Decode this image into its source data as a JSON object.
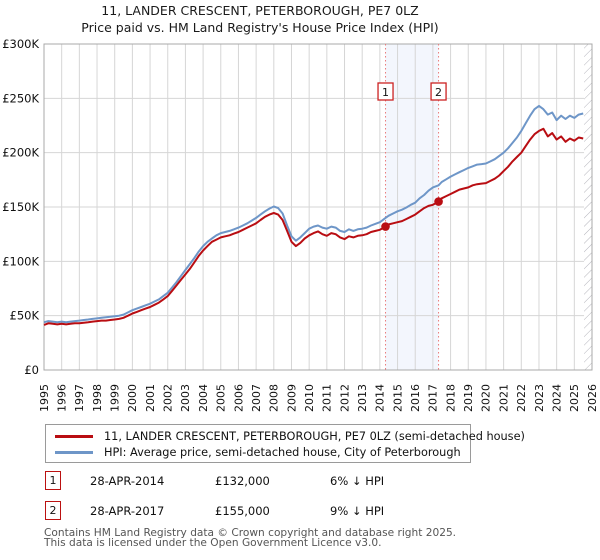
{
  "page": {
    "title": "11, LANDER CRESCENT, PETERBOROUGH, PE7 0LZ",
    "subtitle": "Price paid vs. HM Land Registry's House Price Index (HPI)"
  },
  "legend": {
    "items": [
      {
        "label": "11, LANDER CRESCENT, PETERBOROUGH, PE7 0LZ (semi-detached house)",
        "color": "#b90d12"
      },
      {
        "label": "HPI: Average price, semi-detached house, City of Peterborough",
        "color": "#6e96c8"
      }
    ]
  },
  "transactions": [
    {
      "index": "1",
      "date": "28-APR-2014",
      "price": "£132,000",
      "vs_hpi": "6% ↓ HPI"
    },
    {
      "index": "2",
      "date": "28-APR-2017",
      "price": "£155,000",
      "vs_hpi": "9% ↓ HPI"
    }
  ],
  "footer": {
    "line1": "Contains HM Land Registry data © Crown copyright and database right 2025.",
    "line2": "This data is licensed under the Open Government Licence v3.0."
  },
  "chart_data": {
    "type": "line",
    "title": "11, LANDER CRESCENT, PETERBOROUGH, PE7 0LZ — Price paid vs. HPI",
    "unit": "GBP thousands",
    "x_range": [
      1995,
      2026
    ],
    "y_range_thousands": [
      0,
      300
    ],
    "grid": true,
    "y_ticks": [
      {
        "value": 0,
        "label": "£0"
      },
      {
        "value": 50,
        "label": "£50K"
      },
      {
        "value": 100,
        "label": "£100K"
      },
      {
        "value": 150,
        "label": "£150K"
      },
      {
        "value": 200,
        "label": "£200K"
      },
      {
        "value": 250,
        "label": "£250K"
      },
      {
        "value": 300,
        "label": "£300K"
      }
    ],
    "x_tick_labels": [
      "1995",
      "1996",
      "1997",
      "1998",
      "1999",
      "2000",
      "2001",
      "2002",
      "2003",
      "2004",
      "2005",
      "2006",
      "2007",
      "2008",
      "2009",
      "2010",
      "2011",
      "2012",
      "2013",
      "2014",
      "2015",
      "2016",
      "2017",
      "2018",
      "2019",
      "2020",
      "2021",
      "2022",
      "2023",
      "2024",
      "2025",
      "2026"
    ],
    "event_band": {
      "from": 2014.32,
      "to": 2017.32,
      "color": "#f3f6fd"
    },
    "no_data_band": {
      "from": 2025.55,
      "to": 2026
    },
    "event_line_color": "#e97b7b",
    "markers": [
      {
        "label": "1",
        "x": 2014.32,
        "y": 132
      },
      {
        "label": "2",
        "x": 2017.32,
        "y": 155
      }
    ],
    "series": [
      {
        "name": "11, LANDER CRESCENT, PETERBOROUGH, PE7 0LZ (semi-detached house)",
        "color": "#b90d12",
        "points": [
          [
            1995,
            41.5
          ],
          [
            1995.25,
            43
          ],
          [
            1995.5,
            42.5
          ],
          [
            1995.75,
            42
          ],
          [
            1996,
            42.5
          ],
          [
            1996.25,
            42
          ],
          [
            1996.5,
            42.5
          ],
          [
            1996.75,
            43
          ],
          [
            1997,
            43
          ],
          [
            1997.25,
            43.5
          ],
          [
            1997.5,
            44
          ],
          [
            1997.75,
            44.5
          ],
          [
            1998,
            45
          ],
          [
            1998.25,
            45.5
          ],
          [
            1998.5,
            45.5
          ],
          [
            1998.75,
            46
          ],
          [
            1999,
            46.5
          ],
          [
            1999.25,
            47
          ],
          [
            1999.5,
            48
          ],
          [
            1999.75,
            50
          ],
          [
            2000,
            52
          ],
          [
            2000.25,
            53.5
          ],
          [
            2000.5,
            55
          ],
          [
            2000.75,
            56.5
          ],
          [
            2001,
            58
          ],
          [
            2001.25,
            60
          ],
          [
            2001.5,
            62
          ],
          [
            2001.75,
            65
          ],
          [
            2002,
            68
          ],
          [
            2002.25,
            73
          ],
          [
            2002.5,
            78
          ],
          [
            2002.75,
            83
          ],
          [
            2003,
            88
          ],
          [
            2003.25,
            93
          ],
          [
            2003.5,
            99
          ],
          [
            2003.75,
            105
          ],
          [
            2004,
            110
          ],
          [
            2004.25,
            114
          ],
          [
            2004.5,
            118
          ],
          [
            2004.75,
            120
          ],
          [
            2005,
            122
          ],
          [
            2005.25,
            123
          ],
          [
            2005.5,
            124
          ],
          [
            2005.75,
            125.5
          ],
          [
            2006,
            127
          ],
          [
            2006.25,
            129
          ],
          [
            2006.5,
            131
          ],
          [
            2006.75,
            133
          ],
          [
            2007,
            135
          ],
          [
            2007.25,
            138
          ],
          [
            2007.5,
            141
          ],
          [
            2007.75,
            143
          ],
          [
            2008,
            144.5
          ],
          [
            2008.25,
            143
          ],
          [
            2008.5,
            138
          ],
          [
            2008.75,
            128
          ],
          [
            2009,
            118
          ],
          [
            2009.25,
            114
          ],
          [
            2009.5,
            117
          ],
          [
            2009.75,
            121
          ],
          [
            2010,
            124
          ],
          [
            2010.25,
            126
          ],
          [
            2010.5,
            127.5
          ],
          [
            2010.75,
            125
          ],
          [
            2011,
            123.5
          ],
          [
            2011.25,
            126
          ],
          [
            2011.5,
            125
          ],
          [
            2011.75,
            122
          ],
          [
            2012,
            120.5
          ],
          [
            2012.25,
            123
          ],
          [
            2012.5,
            122
          ],
          [
            2012.75,
            123.5
          ],
          [
            2013,
            124
          ],
          [
            2013.25,
            125
          ],
          [
            2013.5,
            127
          ],
          [
            2013.75,
            128
          ],
          [
            2014,
            129
          ],
          [
            2014.32,
            132
          ],
          [
            2014.5,
            134
          ],
          [
            2014.75,
            135
          ],
          [
            2015,
            136
          ],
          [
            2015.25,
            137
          ],
          [
            2015.5,
            139
          ],
          [
            2015.75,
            141
          ],
          [
            2016,
            143
          ],
          [
            2016.25,
            146
          ],
          [
            2016.5,
            149
          ],
          [
            2016.75,
            151
          ],
          [
            2017,
            152
          ],
          [
            2017.32,
            155
          ],
          [
            2017.5,
            158
          ],
          [
            2017.75,
            160
          ],
          [
            2018,
            162
          ],
          [
            2018.25,
            164
          ],
          [
            2018.5,
            166
          ],
          [
            2018.75,
            167
          ],
          [
            2019,
            168
          ],
          [
            2019.25,
            170
          ],
          [
            2019.5,
            171
          ],
          [
            2019.75,
            171.5
          ],
          [
            2020,
            172
          ],
          [
            2020.25,
            174
          ],
          [
            2020.5,
            176
          ],
          [
            2020.75,
            179
          ],
          [
            2021,
            183
          ],
          [
            2021.25,
            187
          ],
          [
            2021.5,
            192
          ],
          [
            2021.75,
            196
          ],
          [
            2022,
            200
          ],
          [
            2022.25,
            206
          ],
          [
            2022.5,
            212
          ],
          [
            2022.75,
            217
          ],
          [
            2023,
            220
          ],
          [
            2023.25,
            222
          ],
          [
            2023.5,
            215
          ],
          [
            2023.75,
            218
          ],
          [
            2024,
            212
          ],
          [
            2024.25,
            215
          ],
          [
            2024.5,
            210
          ],
          [
            2024.75,
            213
          ],
          [
            2025,
            211
          ],
          [
            2025.25,
            214
          ],
          [
            2025.5,
            213
          ]
        ]
      },
      {
        "name": "HPI: Average price, semi-detached house, City of Peterborough",
        "color": "#6e96c8",
        "points": [
          [
            1995,
            44
          ],
          [
            1995.25,
            45
          ],
          [
            1995.5,
            44.5
          ],
          [
            1995.75,
            44
          ],
          [
            1996,
            44.5
          ],
          [
            1996.25,
            44
          ],
          [
            1996.5,
            44.5
          ],
          [
            1996.75,
            45
          ],
          [
            1997,
            45.5
          ],
          [
            1997.25,
            46
          ],
          [
            1997.5,
            46.5
          ],
          [
            1997.75,
            47
          ],
          [
            1998,
            47.5
          ],
          [
            1998.25,
            48
          ],
          [
            1998.5,
            48.5
          ],
          [
            1998.75,
            49
          ],
          [
            1999,
            49.5
          ],
          [
            1999.25,
            50
          ],
          [
            1999.5,
            51
          ],
          [
            1999.75,
            53
          ],
          [
            2000,
            55
          ],
          [
            2000.25,
            56.5
          ],
          [
            2000.5,
            58
          ],
          [
            2000.75,
            59.5
          ],
          [
            2001,
            61
          ],
          [
            2001.25,
            63
          ],
          [
            2001.5,
            65
          ],
          [
            2001.75,
            68
          ],
          [
            2002,
            71
          ],
          [
            2002.25,
            76
          ],
          [
            2002.5,
            81
          ],
          [
            2002.75,
            86.5
          ],
          [
            2003,
            92
          ],
          [
            2003.25,
            97.5
          ],
          [
            2003.5,
            103
          ],
          [
            2003.75,
            109
          ],
          [
            2004,
            114
          ],
          [
            2004.25,
            118
          ],
          [
            2004.5,
            121
          ],
          [
            2004.75,
            124
          ],
          [
            2005,
            126
          ],
          [
            2005.25,
            127
          ],
          [
            2005.5,
            128
          ],
          [
            2005.75,
            129.5
          ],
          [
            2006,
            131
          ],
          [
            2006.25,
            133
          ],
          [
            2006.5,
            135
          ],
          [
            2006.75,
            137.5
          ],
          [
            2007,
            140
          ],
          [
            2007.25,
            143
          ],
          [
            2007.5,
            146
          ],
          [
            2007.75,
            148.5
          ],
          [
            2008,
            150.5
          ],
          [
            2008.25,
            149
          ],
          [
            2008.5,
            144
          ],
          [
            2008.75,
            133
          ],
          [
            2009,
            123
          ],
          [
            2009.25,
            119
          ],
          [
            2009.5,
            122
          ],
          [
            2009.75,
            126
          ],
          [
            2010,
            130
          ],
          [
            2010.25,
            132
          ],
          [
            2010.5,
            133
          ],
          [
            2010.75,
            131
          ],
          [
            2011,
            130
          ],
          [
            2011.25,
            132
          ],
          [
            2011.5,
            131
          ],
          [
            2011.75,
            128
          ],
          [
            2012,
            127
          ],
          [
            2012.25,
            129.5
          ],
          [
            2012.5,
            128
          ],
          [
            2012.75,
            129.5
          ],
          [
            2013,
            130
          ],
          [
            2013.25,
            131
          ],
          [
            2013.5,
            133
          ],
          [
            2013.75,
            134.5
          ],
          [
            2014,
            136
          ],
          [
            2014.32,
            140
          ],
          [
            2014.5,
            142
          ],
          [
            2014.75,
            144
          ],
          [
            2015,
            146
          ],
          [
            2015.25,
            147.5
          ],
          [
            2015.5,
            149.5
          ],
          [
            2015.75,
            152
          ],
          [
            2016,
            154
          ],
          [
            2016.25,
            158
          ],
          [
            2016.5,
            161
          ],
          [
            2016.75,
            165
          ],
          [
            2017,
            168
          ],
          [
            2017.32,
            170
          ],
          [
            2017.5,
            173
          ],
          [
            2017.75,
            175.5
          ],
          [
            2018,
            178
          ],
          [
            2018.25,
            180
          ],
          [
            2018.5,
            182
          ],
          [
            2018.75,
            184
          ],
          [
            2019,
            186
          ],
          [
            2019.25,
            187.5
          ],
          [
            2019.5,
            189
          ],
          [
            2019.75,
            189.5
          ],
          [
            2020,
            190
          ],
          [
            2020.25,
            192
          ],
          [
            2020.5,
            194
          ],
          [
            2020.75,
            197
          ],
          [
            2021,
            200
          ],
          [
            2021.25,
            204
          ],
          [
            2021.5,
            209
          ],
          [
            2021.75,
            214
          ],
          [
            2022,
            220
          ],
          [
            2022.25,
            227
          ],
          [
            2022.5,
            234
          ],
          [
            2022.75,
            240
          ],
          [
            2023,
            243
          ],
          [
            2023.25,
            240
          ],
          [
            2023.5,
            235
          ],
          [
            2023.75,
            237
          ],
          [
            2024,
            230
          ],
          [
            2024.25,
            234
          ],
          [
            2024.5,
            231
          ],
          [
            2024.75,
            234
          ],
          [
            2025,
            232
          ],
          [
            2025.25,
            235
          ],
          [
            2025.5,
            236
          ]
        ]
      }
    ]
  }
}
